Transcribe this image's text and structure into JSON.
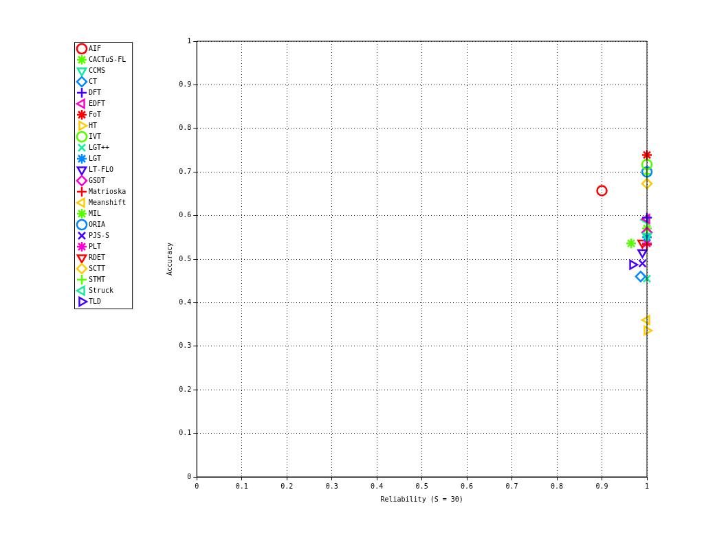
{
  "chart_data": {
    "type": "scatter",
    "xlabel": "Reliability (S = 30)",
    "ylabel": "Accuracy",
    "xlim": [
      0,
      1
    ],
    "ylim": [
      0,
      1
    ],
    "xticks": [
      0,
      0.1,
      0.2,
      0.3,
      0.4,
      0.5,
      0.6,
      0.7,
      0.8,
      0.9,
      1
    ],
    "yticks": [
      0,
      0.1,
      0.2,
      0.3,
      0.4,
      0.5,
      0.6,
      0.7,
      0.8,
      0.9,
      1
    ],
    "grid": true,
    "legend": "top left",
    "series": [
      {
        "name": "AIF",
        "color": "#ff0000",
        "marker": "circle",
        "x": [
          0.9
        ],
        "values": [
          0.657
        ]
      },
      {
        "name": "CACTuS-FL",
        "color": "#55ff00",
        "marker": "cross",
        "x": [
          0.965
        ],
        "values": [
          0.536
        ]
      },
      {
        "name": "CCMS",
        "color": "#11ee99",
        "marker": "triangle-down",
        "x": [
          1.0
        ],
        "values": [
          0.553
        ]
      },
      {
        "name": "CT",
        "color": "#0088ff",
        "marker": "diamond",
        "x": [
          0.986
        ],
        "values": [
          0.46
        ]
      },
      {
        "name": "DFT",
        "color": "#4400ff",
        "marker": "plus",
        "x": [
          1.0
        ],
        "values": [
          0.595
        ]
      },
      {
        "name": "EDFT",
        "color": "#ff00cc",
        "marker": "triangle-left",
        "x": [
          1.0
        ],
        "values": [
          0.592
        ]
      },
      {
        "name": "FoT",
        "color": "#ff0000",
        "marker": "cross",
        "x": [
          1.0
        ],
        "values": [
          0.739
        ]
      },
      {
        "name": "HT",
        "color": "#ffcc00",
        "marker": "triangle-right",
        "x": [
          1.0
        ],
        "values": [
          0.336
        ]
      },
      {
        "name": "IVT",
        "color": "#55ff00",
        "marker": "circle",
        "x": [
          1.0
        ],
        "values": [
          0.717
        ]
      },
      {
        "name": "LGT++",
        "color": "#11ee99",
        "marker": "x",
        "x": [
          1.0
        ],
        "values": [
          0.455
        ]
      },
      {
        "name": "LGT",
        "color": "#0088ff",
        "marker": "cross",
        "x": [
          1.0
        ],
        "values": [
          0.55
        ]
      },
      {
        "name": "LT-FLO",
        "color": "#4400ff",
        "marker": "triangle-down",
        "x": [
          0.99
        ],
        "values": [
          0.515
        ]
      },
      {
        "name": "GSDT",
        "color": "#ff00cc",
        "marker": "diamond",
        "x": [
          1.0
        ],
        "values": [
          0.561
        ]
      },
      {
        "name": "Matrioska",
        "color": "#ff0000",
        "marker": "plus",
        "x": [
          1.0
        ],
        "values": [
          0.533
        ]
      },
      {
        "name": "Meanshift",
        "color": "#ffcc00",
        "marker": "triangle-left",
        "x": [
          1.0
        ],
        "values": [
          0.36
        ]
      },
      {
        "name": "MIL",
        "color": "#55ff00",
        "marker": "cross",
        "x": [
          1.0
        ],
        "values": [
          0.57
        ]
      },
      {
        "name": "ORIA",
        "color": "#0088ff",
        "marker": "circle",
        "x": [
          1.0
        ],
        "values": [
          0.7
        ]
      },
      {
        "name": "PJS-S",
        "color": "#4400ff",
        "marker": "x",
        "x": [
          0.99
        ],
        "values": [
          0.49
        ]
      },
      {
        "name": "PLT",
        "color": "#ff00cc",
        "marker": "cross",
        "x": [
          1.0
        ],
        "values": [
          0.536
        ]
      },
      {
        "name": "RDET",
        "color": "#ff0000",
        "marker": "triangle-down",
        "x": [
          0.99
        ],
        "values": [
          0.537
        ]
      },
      {
        "name": "SCTT",
        "color": "#ffcc00",
        "marker": "diamond",
        "x": [
          1.0
        ],
        "values": [
          0.673
        ]
      },
      {
        "name": "STMT",
        "color": "#55ff00",
        "marker": "plus",
        "x": [
          1.0
        ],
        "values": [
          0.695
        ]
      },
      {
        "name": "Struck",
        "color": "#11ee99",
        "marker": "triangle-left",
        "x": [
          0.998
        ],
        "values": [
          0.59
        ]
      },
      {
        "name": "TLD",
        "color": "#4400ff",
        "marker": "triangle-right",
        "x": [
          0.968
        ],
        "values": [
          0.487
        ]
      }
    ]
  }
}
